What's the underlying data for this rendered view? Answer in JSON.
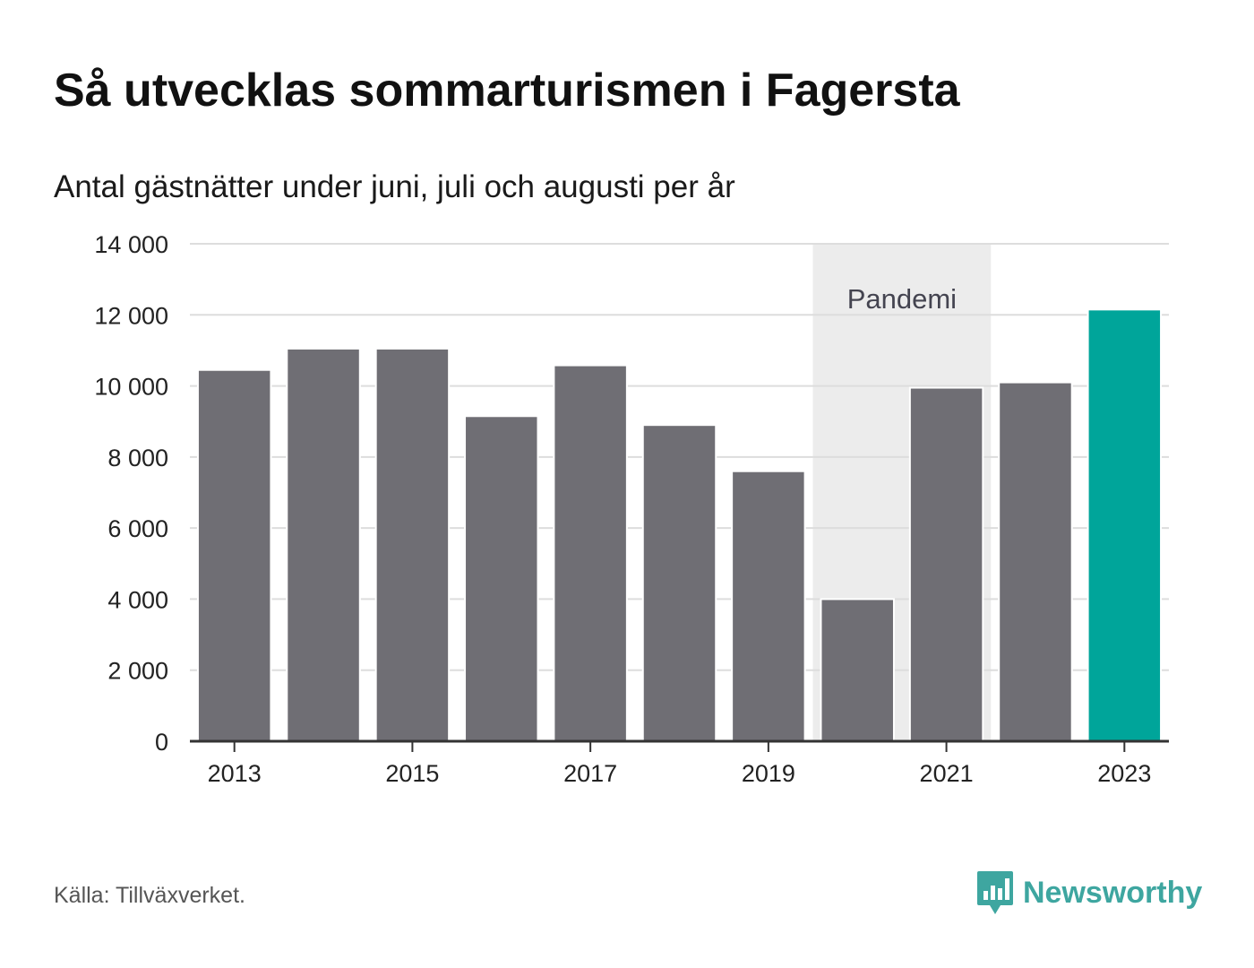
{
  "header": {
    "title": "Så utvecklas sommarturismen i Fagersta",
    "subtitle": "Antal gästnätter under juni, juli och augusti per år"
  },
  "footer": {
    "source": "Källa: Tillväxverket.",
    "brand": "Newsworthy",
    "brand_icon": "bar-chart-speech-bubble-icon"
  },
  "colors": {
    "bar": "#6f6e74",
    "highlight_bar": "#00a59a",
    "pandemic_band": "#ececec",
    "grid": "#dddddd",
    "axis": "#333333",
    "brand": "#3ea6a0"
  },
  "chart_data": {
    "type": "bar",
    "title": "Så utvecklas sommarturismen i Fagersta",
    "subtitle": "Antal gästnätter under juni, juli och augusti per år",
    "categories": [
      "2013",
      "2014",
      "2015",
      "2016",
      "2017",
      "2018",
      "2019",
      "2020",
      "2021",
      "2022",
      "2023"
    ],
    "values": [
      10450,
      11050,
      11050,
      9150,
      10580,
      8900,
      7600,
      4000,
      9950,
      10100,
      12150
    ],
    "highlight_category": "2023",
    "x_tick_labels": [
      "2013",
      "2015",
      "2017",
      "2019",
      "2021",
      "2023"
    ],
    "y_ticks": [
      0,
      2000,
      4000,
      6000,
      8000,
      10000,
      12000,
      14000
    ],
    "y_tick_labels": [
      "0",
      "2 000",
      "4 000",
      "6 000",
      "8 000",
      "10 000",
      "12 000",
      "14 000"
    ],
    "ylim": [
      0,
      14000
    ],
    "grid": true,
    "annotations": [
      {
        "label": "Pandemi",
        "from": "2020",
        "to": "2021"
      }
    ]
  }
}
